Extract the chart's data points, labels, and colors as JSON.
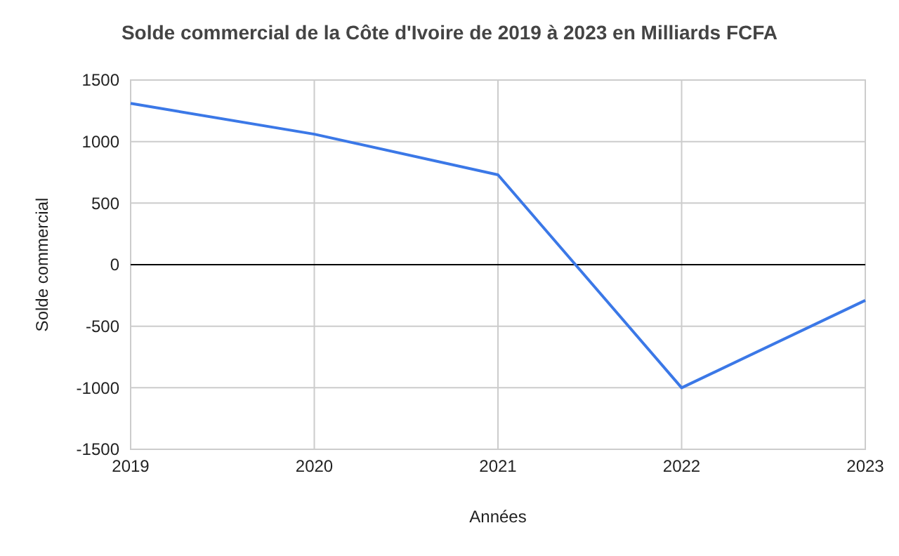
{
  "chart_data": {
    "type": "line",
    "title": "Solde commercial de la Côte d'Ivoire de 2019 à 2023 en Milliards FCFA",
    "xlabel": "Années",
    "ylabel": "Solde commercial",
    "x": [
      2019,
      2020,
      2021,
      2022,
      2023
    ],
    "series": [
      {
        "color": "#3b78e7",
        "values": [
          1310,
          1060,
          730,
          -1000,
          -290
        ]
      }
    ],
    "xlim": [
      2019,
      2023
    ],
    "xticks": [
      2019,
      2020,
      2021,
      2022,
      2023
    ],
    "ylim": [
      -1500,
      1500
    ],
    "yticks": [
      -1500,
      -1000,
      -500,
      0,
      500,
      1000,
      1500
    ],
    "grid": true,
    "ref_lines": [
      {
        "axis": "y",
        "value": 0,
        "color": "#000000"
      }
    ]
  }
}
